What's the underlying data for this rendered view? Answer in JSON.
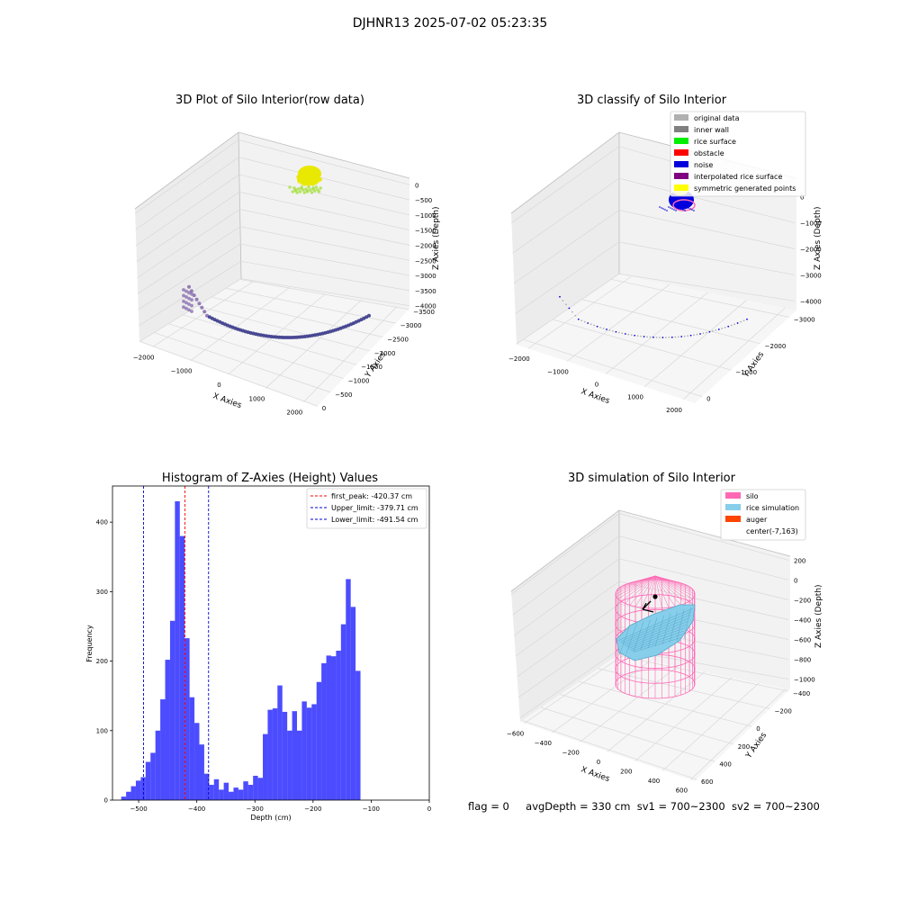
{
  "suptitle": "DJHNR13 2025-07-02 05:23:35",
  "footer": {
    "flag": "flag = 0",
    "avg_depth": "avgDepth = 330 cm",
    "sv1": "sv1 = 700~2300",
    "sv2": "sv2 = 700~2300"
  },
  "chart_data": [
    {
      "type": "scatter",
      "title": "3D Plot of Silo Interior(row data)",
      "xlabel": "X Axies",
      "ylabel": "Y Axies",
      "zlabel": "Z Axies (Depth)",
      "x_ticks": [
        "−2000",
        "−1000",
        "0",
        "1000",
        "2000"
      ],
      "y_ticks": [
        "0",
        "−500",
        "−1000",
        "−1500",
        "−2000",
        "−2500",
        "−3000",
        "−3500"
      ],
      "z_ticks": [
        "0",
        "−500",
        "−1000",
        "−1500",
        "−2000",
        "−2500",
        "−3000",
        "−3500",
        "−4000"
      ],
      "colors": {
        "surface": "#e8e800",
        "surface_edge": "#a8e040",
        "wall": "#3b3b8c",
        "wall_light": "#8a70b0"
      }
    },
    {
      "type": "scatter",
      "title": "3D classify of Silo Interior",
      "xlabel": "X Axies",
      "ylabel": "Y Axies",
      "zlabel": "Z Axies (Depth)",
      "x_ticks": [
        "−2000",
        "−1000",
        "0",
        "1000",
        "2000"
      ],
      "y_ticks": [
        "0",
        "−1000",
        "−2000",
        "−3000"
      ],
      "z_ticks": [
        "0",
        "−1000",
        "−2000",
        "−3000",
        "−4000"
      ],
      "legend": [
        {
          "label": "original data",
          "color": "#b0b0b0"
        },
        {
          "label": "inner wall",
          "color": "#808080"
        },
        {
          "label": "rice surface",
          "color": "#00ee00"
        },
        {
          "label": "obstacle",
          "color": "#ff0000"
        },
        {
          "label": "noise",
          "color": "#0000dd"
        },
        {
          "label": "interpolated rice surface",
          "color": "#800080"
        },
        {
          "label": "symmetric generated points",
          "color": "#ffff00"
        }
      ],
      "legend_loc": "upper right"
    },
    {
      "type": "bar",
      "title": "Histogram of Z-Axies (Height) Values",
      "xlabel": "Depth (cm)",
      "ylabel": "Frequency",
      "xlim": [
        -545,
        0
      ],
      "ylim": [
        0,
        452
      ],
      "x_ticks": [
        -500,
        -400,
        -300,
        -200,
        -100,
        0
      ],
      "x_tick_labels": [
        "−500",
        "−400",
        "−300",
        "−200",
        "−100",
        "0"
      ],
      "y_ticks": [
        0,
        100,
        200,
        300,
        400
      ],
      "bin_start": -530,
      "bin_width": 8.4,
      "values": [
        5,
        12,
        20,
        28,
        33,
        55,
        68,
        100,
        145,
        202,
        258,
        430,
        380,
        233,
        148,
        111,
        80,
        38,
        22,
        30,
        15,
        25,
        12,
        18,
        15,
        27,
        22,
        35,
        32,
        95,
        130,
        132,
        165,
        127,
        100,
        128,
        100,
        142,
        133,
        138,
        170,
        197,
        208,
        207,
        215,
        253,
        318,
        278,
        186
      ],
      "bar_color": "#0000ff",
      "bar_opacity": 0.7,
      "lines": [
        {
          "label": "first_peak: -420.37 cm",
          "x": -420.37,
          "color": "#ff0000"
        },
        {
          "label": "Upper_limit: -379.71 cm",
          "x": -379.71,
          "color": "#0000cc"
        },
        {
          "label": "Lower_limit: -491.54 cm",
          "x": -491.54,
          "color": "#0000cc"
        }
      ],
      "legend_loc": "upper right"
    },
    {
      "type": "surface",
      "title": "3D simulation of Silo Interior",
      "xlabel": "X Axies",
      "ylabel": "Y Axies",
      "zlabel": "Z Axies (Depth)",
      "x_ticks": [
        "−600",
        "−400",
        "−200",
        "0",
        "200",
        "400",
        "600"
      ],
      "y_ticks": [
        "600",
        "400",
        "200",
        "0",
        "−200",
        "−400"
      ],
      "z_ticks": [
        "200",
        "0",
        "−200",
        "−400",
        "−600",
        "−800",
        "−1000"
      ],
      "legend": [
        {
          "label": "silo",
          "color": "#ff69b4"
        },
        {
          "label": "rice simulation",
          "color": "#87ceeb"
        },
        {
          "label": "auger",
          "color": "#ff4500"
        },
        {
          "label": "center(-7,163)",
          "color": ""
        }
      ],
      "legend_loc": "upper right"
    }
  ]
}
